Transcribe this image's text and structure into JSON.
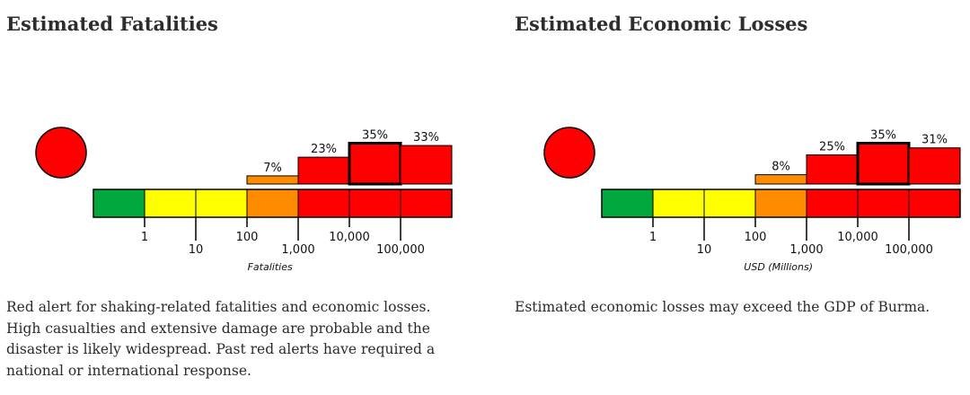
{
  "chart_data": [
    {
      "type": "bar",
      "title": "Estimated Fatalities",
      "xlabel": "Fatalities",
      "alert_level": "red",
      "categories": [
        "0",
        "1-9",
        "10-99",
        "100-999",
        "1,000-9,999",
        "10,000-99,999",
        "100,000+"
      ],
      "values": [
        0,
        0,
        0,
        7,
        23,
        35,
        33
      ],
      "value_labels": [
        "",
        "",
        "",
        "7%",
        "23%",
        "35%",
        "33%"
      ],
      "highlighted_category": "10,000-99,999",
      "tick_labels": [
        "1",
        "10",
        "100",
        "1,000",
        "10,000",
        "100,000"
      ],
      "scale_colors": [
        "#00a73c",
        "#ffff00",
        "#ffff00",
        "#ff8c00",
        "#ff0000",
        "#ff0000",
        "#ff0000"
      ]
    },
    {
      "type": "bar",
      "title": "Estimated Economic Losses",
      "xlabel": "USD (Millions)",
      "alert_level": "red",
      "categories": [
        "0",
        "1-9",
        "10-99",
        "100-999",
        "1,000-9,999",
        "10,000-99,999",
        "100,000+"
      ],
      "values": [
        0,
        0,
        0,
        8,
        25,
        35,
        31
      ],
      "value_labels": [
        "",
        "",
        "",
        "8%",
        "25%",
        "35%",
        "31%"
      ],
      "highlighted_category": "10,000-99,999",
      "tick_labels": [
        "1",
        "10",
        "100",
        "1,000",
        "10,000",
        "100,000"
      ],
      "scale_colors": [
        "#00a73c",
        "#ffff00",
        "#ffff00",
        "#ff8c00",
        "#ff0000",
        "#ff0000",
        "#ff0000"
      ]
    }
  ],
  "fatalities": {
    "title": "Estimated Fatalities",
    "description": "Red alert for shaking-related fatalities and economic losses. High casualties and extensive damage are probable and the disaster is likely widespread. Past red alerts have required a national or international response."
  },
  "losses": {
    "title": "Estimated Economic Losses",
    "description": "Estimated economic losses may exceed the GDP of Burma."
  }
}
